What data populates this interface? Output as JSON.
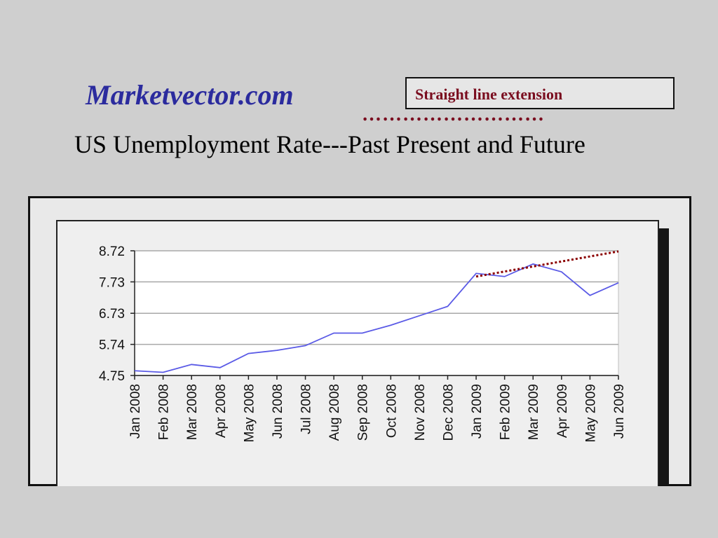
{
  "header": {
    "brand": "Marketvector.com",
    "legend_label": "Straight line extension",
    "dots": "………………………",
    "title": "US Unemployment Rate---Past Present and Future"
  },
  "colors": {
    "brand": "#2b2b9e",
    "series_line": "#5a5ae6",
    "extension_line": "#8b0000",
    "legend_text": "#7a0d1f"
  },
  "chart_data": {
    "type": "line",
    "categories": [
      "Jan 2008",
      "Feb 2008",
      "Mar 2008",
      "Apr 2008",
      "May 2008",
      "Jun 2008",
      "Jul 2008",
      "Aug 2008",
      "Sep 2008",
      "Oct 2008",
      "Nov 2008",
      "Dec 2008",
      "Jan 2009",
      "Feb 2009",
      "Mar 2009",
      "Apr 2009",
      "May 2009",
      "Jun 2009"
    ],
    "yticks": [
      "8.72",
      "7.73",
      "6.73",
      "5.74",
      "4.75"
    ],
    "ylim": [
      4.75,
      8.72
    ],
    "series": [
      {
        "values": [
          4.9,
          4.85,
          5.1,
          5.0,
          5.45,
          5.55,
          5.7,
          6.1,
          6.1,
          6.35,
          6.65,
          6.95,
          8.0,
          7.9,
          8.3,
          8.05,
          7.3,
          7.7
        ],
        "style": "solid",
        "color": "#5a5ae6"
      },
      {
        "x_from_index": 12,
        "x_to_index": 17,
        "values_from_to": [
          7.9,
          8.7
        ],
        "style": "dotted",
        "color": "#8b0000"
      }
    ],
    "grid": true,
    "title": "",
    "xlabel": "",
    "ylabel": ""
  }
}
